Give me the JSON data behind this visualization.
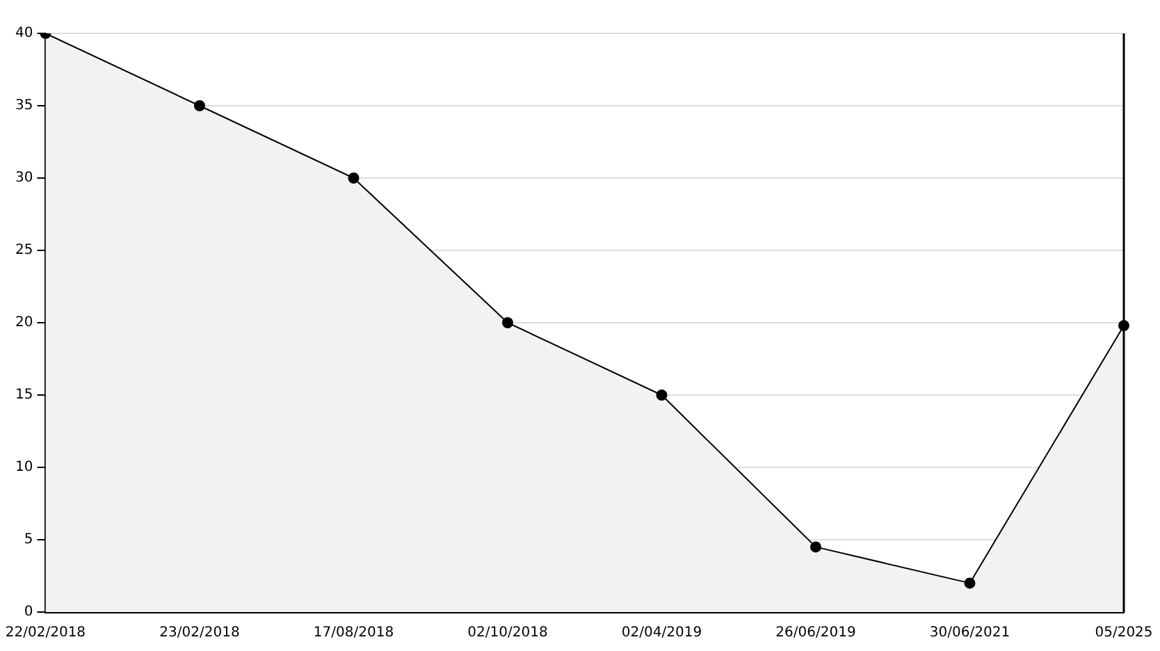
{
  "chart_data": {
    "type": "area",
    "categories": [
      "22/02/2018",
      "23/02/2018",
      "17/08/2018",
      "02/10/2018",
      "02/04/2019",
      "26/06/2019",
      "30/06/2021",
      "05/2025"
    ],
    "series": [
      {
        "color": "#000000",
        "values": [
          40,
          35,
          30,
          20,
          15,
          4.5,
          2,
          19.8
        ]
      }
    ],
    "ylim": [
      0,
      40
    ],
    "yticks": [
      0,
      5,
      10,
      15,
      20,
      25,
      30,
      35,
      40
    ],
    "grid": "y",
    "legend": false,
    "marker": "circle",
    "line_style": "solid"
  }
}
